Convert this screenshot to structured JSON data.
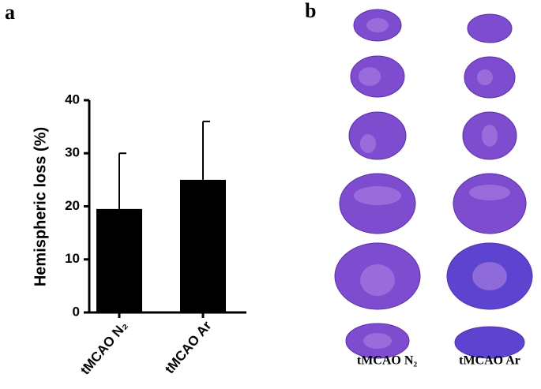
{
  "panels": [
    "a",
    "b"
  ],
  "chart_data": {
    "type": "bar",
    "ylabel": "Hemispheric loss (%)",
    "categories": [
      "tMCAO N₂",
      "tMCAO Ar"
    ],
    "values": [
      19.5,
      25
    ],
    "errors": [
      10.5,
      11
    ],
    "color": "#000000",
    "ylim": [
      0,
      40
    ],
    "yticks": [
      0,
      10,
      20,
      30,
      40
    ],
    "grid": false
  },
  "sections": {
    "labels": [
      "tMCAO N₂",
      "tMCAO Ar"
    ]
  }
}
